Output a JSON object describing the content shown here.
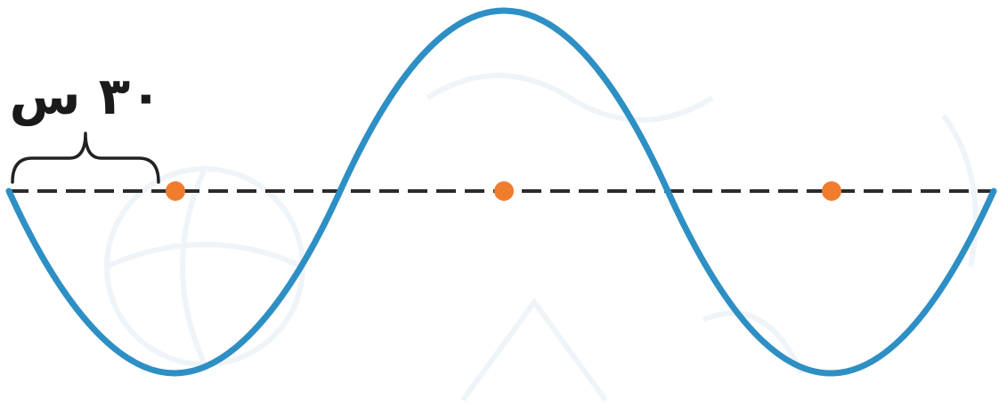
{
  "diagram": {
    "duration_label": "۳۰ س",
    "colors": {
      "wave": "#2e8fc4",
      "axis": "#2b2b2b",
      "dot": "#ef7d2d",
      "brace": "#222222",
      "label": "#1a1a1a"
    }
  }
}
